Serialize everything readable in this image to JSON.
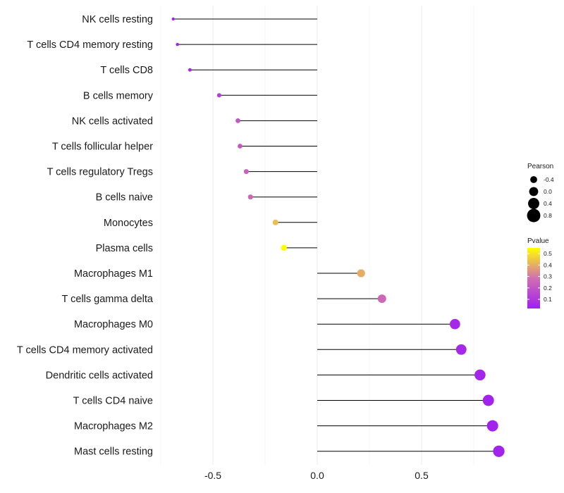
{
  "chart_data": {
    "type": "lollipop",
    "categories": [
      "NK cells resting",
      "T cells CD4 memory resting",
      "T cells CD8",
      "B cells memory",
      "NK cells activated",
      "T cells follicular helper",
      "T cells regulatory  Tregs",
      "B cells naive",
      "Monocytes",
      "Plasma cells",
      "Macrophages M1",
      "T cells gamma delta",
      "Macrophages M0",
      "T cells CD4 memory activated",
      "Dendritic cells activated",
      "T cells CD4 naive",
      "Macrophages M2",
      "Mast cells resting"
    ],
    "values": [
      -0.69,
      -0.67,
      -0.61,
      -0.47,
      -0.38,
      -0.37,
      -0.34,
      -0.32,
      -0.2,
      -0.16,
      0.21,
      0.31,
      0.66,
      0.69,
      0.78,
      0.82,
      0.84,
      0.87
    ],
    "pvalues": [
      0.03,
      0.03,
      0.05,
      0.12,
      0.2,
      0.21,
      0.24,
      0.26,
      0.43,
      0.55,
      0.4,
      0.26,
      0.05,
      0.05,
      0.04,
      0.03,
      0.03,
      0.03
    ],
    "x_ticks": [
      -0.5,
      0.0,
      0.5
    ],
    "x_tick_labels": [
      "-0.5",
      "0.0",
      "0.5"
    ],
    "xlim": [
      -0.75,
      0.92
    ],
    "xlabel": "",
    "ylabel": "",
    "legend": {
      "size_title": "Pearson",
      "size_values": [
        -0.4,
        0.0,
        0.4,
        0.8
      ],
      "size_labels": [
        "-0.4",
        "0.0",
        "0.4",
        "0.8"
      ],
      "color_title": "Pvalue",
      "color_ticks": [
        0.1,
        0.2,
        0.3,
        0.4,
        0.5
      ],
      "color_tick_labels": [
        "0.1",
        "0.2",
        "0.3",
        "0.4",
        "0.5"
      ],
      "color_range": [
        0.02,
        0.55
      ],
      "color_low": "#a020f0",
      "color_mid": "#d16fb0",
      "color_high": "#ffff00",
      "position": "right"
    }
  }
}
